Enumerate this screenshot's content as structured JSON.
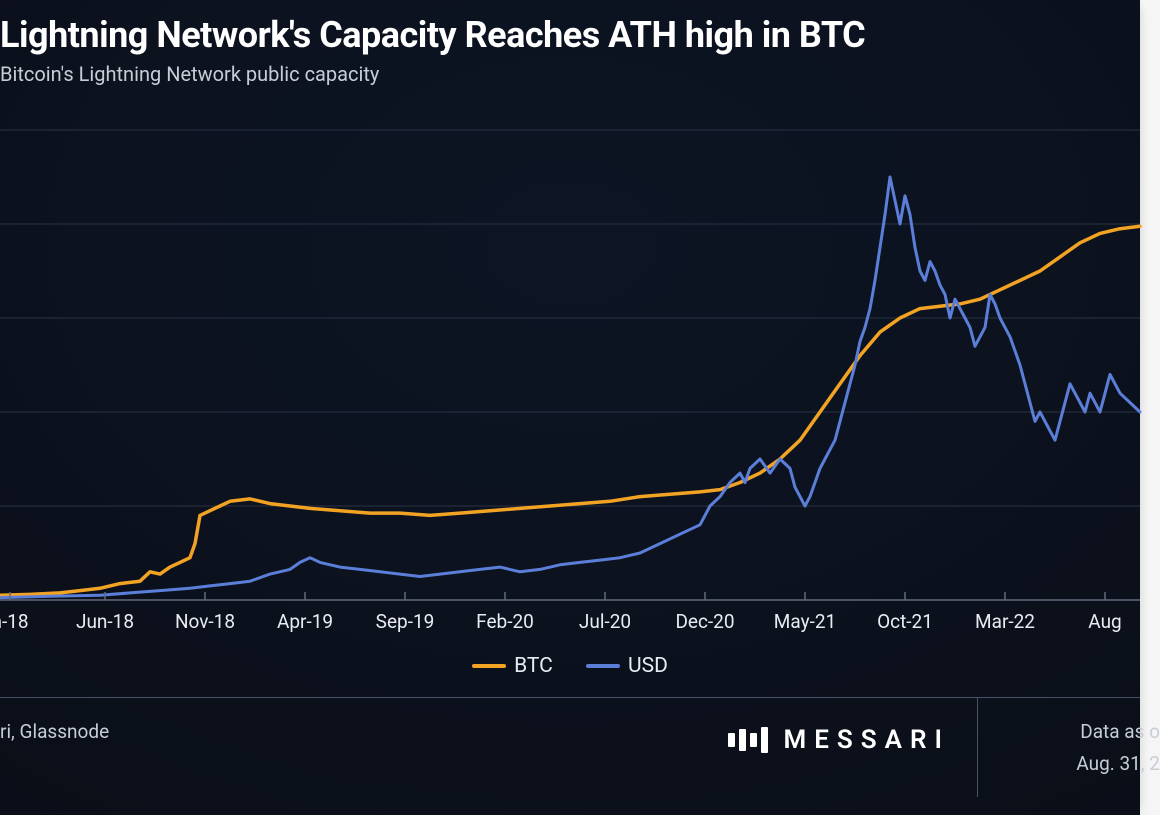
{
  "title": "Lightning Network's Capacity Reaches ATH high in BTC",
  "subtitle": "Bitcoin's Lightning Network public capacity",
  "chart": {
    "type": "line",
    "background_gradient_top": "#0d1524",
    "background_gradient_bottom": "#0a0e17",
    "grid_color": "#2a3344",
    "axis_color": "#606a7d",
    "label_color": "#e8ecf2",
    "title_fontsize": 36,
    "subtitle_fontsize": 20,
    "label_fontsize": 19,
    "x_ticks": [
      {
        "pos": 0.01,
        "label": "n-18"
      },
      {
        "pos": 0.105,
        "label": "Jun-18"
      },
      {
        "pos": 0.205,
        "label": "Nov-18"
      },
      {
        "pos": 0.305,
        "label": "Apr-19"
      },
      {
        "pos": 0.405,
        "label": "Sep-19"
      },
      {
        "pos": 0.505,
        "label": "Feb-20"
      },
      {
        "pos": 0.605,
        "label": "Jul-20"
      },
      {
        "pos": 0.705,
        "label": "Dec-20"
      },
      {
        "pos": 0.805,
        "label": "May-21"
      },
      {
        "pos": 0.905,
        "label": "Oct-21"
      },
      {
        "pos": 1.005,
        "label": "Mar-22"
      },
      {
        "pos": 1.105,
        "label": "Aug"
      }
    ],
    "ylim": [
      0,
      100
    ],
    "grid_y": [
      0,
      20,
      40,
      60,
      80,
      100
    ],
    "series": [
      {
        "name": "BTC",
        "color": "#f2a324",
        "line_width": 3.5,
        "points": [
          [
            0.0,
            1.0
          ],
          [
            0.03,
            1.2
          ],
          [
            0.06,
            1.5
          ],
          [
            0.08,
            2.0
          ],
          [
            0.1,
            2.5
          ],
          [
            0.12,
            3.5
          ],
          [
            0.14,
            4.0
          ],
          [
            0.15,
            6.0
          ],
          [
            0.16,
            5.5
          ],
          [
            0.17,
            7.0
          ],
          [
            0.18,
            8.0
          ],
          [
            0.19,
            9.0
          ],
          [
            0.195,
            12.0
          ],
          [
            0.2,
            18.0
          ],
          [
            0.21,
            19.0
          ],
          [
            0.22,
            20.0
          ],
          [
            0.23,
            21.0
          ],
          [
            0.25,
            21.5
          ],
          [
            0.27,
            20.5
          ],
          [
            0.29,
            20.0
          ],
          [
            0.31,
            19.5
          ],
          [
            0.34,
            19.0
          ],
          [
            0.37,
            18.5
          ],
          [
            0.4,
            18.5
          ],
          [
            0.43,
            18.0
          ],
          [
            0.46,
            18.5
          ],
          [
            0.49,
            19.0
          ],
          [
            0.52,
            19.5
          ],
          [
            0.55,
            20.0
          ],
          [
            0.58,
            20.5
          ],
          [
            0.61,
            21.0
          ],
          [
            0.64,
            22.0
          ],
          [
            0.67,
            22.5
          ],
          [
            0.7,
            23.0
          ],
          [
            0.72,
            23.5
          ],
          [
            0.74,
            25.0
          ],
          [
            0.76,
            27.0
          ],
          [
            0.78,
            30.0
          ],
          [
            0.8,
            34.0
          ],
          [
            0.82,
            40.0
          ],
          [
            0.84,
            46.0
          ],
          [
            0.86,
            52.0
          ],
          [
            0.88,
            57.0
          ],
          [
            0.9,
            60.0
          ],
          [
            0.92,
            62.0
          ],
          [
            0.94,
            62.5
          ],
          [
            0.96,
            63.0
          ],
          [
            0.98,
            64.0
          ],
          [
            1.0,
            66.0
          ],
          [
            1.02,
            68.0
          ],
          [
            1.04,
            70.0
          ],
          [
            1.06,
            73.0
          ],
          [
            1.08,
            76.0
          ],
          [
            1.1,
            78.0
          ],
          [
            1.12,
            79.0
          ],
          [
            1.14,
            79.5
          ]
        ]
      },
      {
        "name": "USD",
        "color": "#5b7fd9",
        "line_width": 3.0,
        "points": [
          [
            0.0,
            0.5
          ],
          [
            0.05,
            0.8
          ],
          [
            0.1,
            1.0
          ],
          [
            0.13,
            1.5
          ],
          [
            0.16,
            2.0
          ],
          [
            0.19,
            2.5
          ],
          [
            0.21,
            3.0
          ],
          [
            0.23,
            3.5
          ],
          [
            0.25,
            4.0
          ],
          [
            0.27,
            5.5
          ],
          [
            0.29,
            6.5
          ],
          [
            0.3,
            8.0
          ],
          [
            0.31,
            9.0
          ],
          [
            0.32,
            8.0
          ],
          [
            0.34,
            7.0
          ],
          [
            0.36,
            6.5
          ],
          [
            0.38,
            6.0
          ],
          [
            0.4,
            5.5
          ],
          [
            0.42,
            5.0
          ],
          [
            0.44,
            5.5
          ],
          [
            0.46,
            6.0
          ],
          [
            0.48,
            6.5
          ],
          [
            0.5,
            7.0
          ],
          [
            0.52,
            6.0
          ],
          [
            0.54,
            6.5
          ],
          [
            0.56,
            7.5
          ],
          [
            0.58,
            8.0
          ],
          [
            0.6,
            8.5
          ],
          [
            0.62,
            9.0
          ],
          [
            0.64,
            10.0
          ],
          [
            0.66,
            12.0
          ],
          [
            0.68,
            14.0
          ],
          [
            0.7,
            16.0
          ],
          [
            0.71,
            20.0
          ],
          [
            0.72,
            22.0
          ],
          [
            0.73,
            25.0
          ],
          [
            0.74,
            27.0
          ],
          [
            0.745,
            25.0
          ],
          [
            0.75,
            28.0
          ],
          [
            0.76,
            30.0
          ],
          [
            0.77,
            27.0
          ],
          [
            0.78,
            30.0
          ],
          [
            0.79,
            28.0
          ],
          [
            0.795,
            24.0
          ],
          [
            0.8,
            22.0
          ],
          [
            0.805,
            20.0
          ],
          [
            0.81,
            22.0
          ],
          [
            0.815,
            25.0
          ],
          [
            0.82,
            28.0
          ],
          [
            0.825,
            30.0
          ],
          [
            0.83,
            32.0
          ],
          [
            0.835,
            34.0
          ],
          [
            0.84,
            38.0
          ],
          [
            0.845,
            42.0
          ],
          [
            0.85,
            46.0
          ],
          [
            0.855,
            50.0
          ],
          [
            0.86,
            55.0
          ],
          [
            0.865,
            58.0
          ],
          [
            0.87,
            62.0
          ],
          [
            0.875,
            68.0
          ],
          [
            0.88,
            75.0
          ],
          [
            0.885,
            82.0
          ],
          [
            0.89,
            90.0
          ],
          [
            0.895,
            85.0
          ],
          [
            0.9,
            80.0
          ],
          [
            0.905,
            86.0
          ],
          [
            0.91,
            82.0
          ],
          [
            0.915,
            75.0
          ],
          [
            0.92,
            70.0
          ],
          [
            0.925,
            68.0
          ],
          [
            0.93,
            72.0
          ],
          [
            0.935,
            70.0
          ],
          [
            0.94,
            67.0
          ],
          [
            0.945,
            65.0
          ],
          [
            0.95,
            60.0
          ],
          [
            0.955,
            64.0
          ],
          [
            0.96,
            62.0
          ],
          [
            0.965,
            60.0
          ],
          [
            0.97,
            58.0
          ],
          [
            0.975,
            54.0
          ],
          [
            0.98,
            56.0
          ],
          [
            0.985,
            58.0
          ],
          [
            0.99,
            65.0
          ],
          [
            0.995,
            63.0
          ],
          [
            1.0,
            60.0
          ],
          [
            1.005,
            58.0
          ],
          [
            1.01,
            56.0
          ],
          [
            1.015,
            53.0
          ],
          [
            1.02,
            50.0
          ],
          [
            1.025,
            46.0
          ],
          [
            1.03,
            42.0
          ],
          [
            1.035,
            38.0
          ],
          [
            1.04,
            40.0
          ],
          [
            1.045,
            38.0
          ],
          [
            1.05,
            36.0
          ],
          [
            1.055,
            34.0
          ],
          [
            1.06,
            38.0
          ],
          [
            1.065,
            42.0
          ],
          [
            1.07,
            46.0
          ],
          [
            1.075,
            44.0
          ],
          [
            1.08,
            42.0
          ],
          [
            1.085,
            40.0
          ],
          [
            1.09,
            44.0
          ],
          [
            1.095,
            42.0
          ],
          [
            1.1,
            40.0
          ],
          [
            1.105,
            44.0
          ],
          [
            1.11,
            48.0
          ],
          [
            1.115,
            46.0
          ],
          [
            1.12,
            44.0
          ],
          [
            1.13,
            42.0
          ],
          [
            1.14,
            40.0
          ]
        ]
      }
    ]
  },
  "legend": {
    "items": [
      {
        "label": "BTC",
        "color": "#f2a324"
      },
      {
        "label": "USD",
        "color": "#5b7fd9"
      }
    ]
  },
  "footer": {
    "sources": "ri, Glassnode",
    "brand": "MESSARI",
    "date_label": "Data as o",
    "date_value": "Aug. 31, 2"
  }
}
